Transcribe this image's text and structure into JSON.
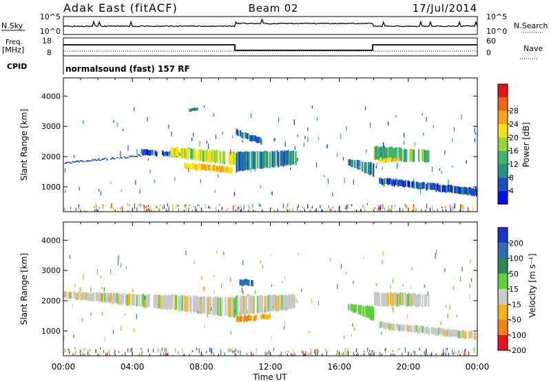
{
  "header": {
    "radar": "Adak East (fitACF)",
    "beam": "Beam 02",
    "date": "17/Jul/2014"
  },
  "noise_panel": {
    "left_label": "N.Sky",
    "right_label": "N.Search",
    "left_ticks": [
      "10^5",
      "10^0"
    ],
    "right_ticks": [
      "10^5",
      "10^0"
    ]
  },
  "freq_panel": {
    "left_label_1": "Freq.",
    "left_label_2": "[MHz]",
    "right_label": "Nave",
    "left_ticks": [
      "18",
      "8"
    ],
    "right_ticks": [
      "60",
      "0"
    ]
  },
  "cpid": {
    "label": "CPID",
    "text": "normalsound (fast) 157 RF"
  },
  "power_panel": {
    "ylabel": "Slant Range [km]",
    "yticks": [
      "1000",
      "2000",
      "3000",
      "4000"
    ],
    "cbar_label": "Power [dB]",
    "cbar_ticks": [
      "4",
      "8",
      "12",
      "16",
      "20",
      "24",
      "28"
    ],
    "cbar_colors": [
      "#0a10e6",
      "#1a4fc2",
      "#2e8f86",
      "#44b36a",
      "#9bd13c",
      "#f4e21b",
      "#f5a418",
      "#ef6413",
      "#e6140f"
    ]
  },
  "velocity_panel": {
    "ylabel": "Slant Range [km]",
    "yticks": [
      "1000",
      "2000",
      "3000",
      "4000"
    ],
    "cbar_label": "Velocity [m s⁻¹]",
    "cbar_ticks": [
      "200",
      "100",
      "50",
      "15",
      "-15",
      "-50",
      "-100",
      "-200"
    ],
    "cbar_colors": [
      "#1a32c8",
      "#2c6fb0",
      "#2e8a52",
      "#5ed13a",
      "#c8c8c8",
      "#f0b418",
      "#f08218",
      "#e6141e"
    ]
  },
  "x_axis": {
    "label": "Time UT",
    "ticks": [
      "00:00",
      "04:00",
      "08:00",
      "12:00",
      "16:00",
      "20:00",
      "00:00"
    ]
  },
  "chart_data": {
    "type": "heatmap",
    "title": "Adak East (fitACF)  Beam 02  17/Jul/2014",
    "x_range_hours": [
      0,
      24
    ],
    "y_range_km": [
      180,
      4600
    ],
    "panels": [
      {
        "name": "Power [dB]",
        "clim": [
          0,
          30
        ],
        "regions": [
          {
            "t0": 0.0,
            "t1": 4.5,
            "range_start": [
              2100,
              2100
            ],
            "range_end": [
              1800,
              2050
            ],
            "level": 4
          },
          {
            "t0": 4.5,
            "t1": 7.0,
            "range_start": [
              2050,
              2000
            ],
            "range_end": [
              2250,
              2100
            ],
            "level": 5
          },
          {
            "t0": 6.2,
            "t1": 10.0,
            "range_start": [
              2000,
              1700
            ],
            "range_end": [
              2300,
              2150
            ],
            "level": 16
          },
          {
            "t0": 7.0,
            "t1": 9.8,
            "range_start": [
              1600,
              1450
            ],
            "range_end": [
              1800,
              1650
            ],
            "level": 20
          },
          {
            "t0": 7.2,
            "t1": 7.8,
            "range_start": [
              3500,
              3500
            ],
            "range_end": [
              3600,
              3600
            ],
            "level": 8
          },
          {
            "t0": 10.0,
            "t1": 13.5,
            "range_start": [
              1500,
              1750
            ],
            "range_end": [
              2150,
              2200
            ],
            "level": 8
          },
          {
            "t0": 10.0,
            "t1": 11.5,
            "range_start": [
              2700,
              2400
            ],
            "range_end": [
              2900,
              2600
            ],
            "level": 6
          },
          {
            "t0": 16.5,
            "t1": 18.0,
            "range_start": [
              1700,
              1350
            ],
            "range_end": [
              1900,
              1800
            ],
            "level": 8
          },
          {
            "t0": 18.0,
            "t1": 21.2,
            "range_start": [
              1900,
              1800
            ],
            "range_end": [
              2350,
              2200
            ],
            "level": 12
          },
          {
            "t0": 18.3,
            "t1": 19.5,
            "range_start": [
              1800,
              1850
            ],
            "range_end": [
              1950,
              1950
            ],
            "level": 20
          },
          {
            "t0": 18.3,
            "t1": 24.0,
            "range_start": [
              1100,
              700
            ],
            "range_end": [
              1300,
              950
            ],
            "level": 5
          }
        ]
      },
      {
        "name": "Velocity [m s-1]",
        "clim": [
          -250,
          250
        ],
        "regions": [
          {
            "t0": 0.0,
            "t1": 10.0,
            "range_start": [
              2100,
              1450
            ],
            "range_end": [
              2300,
              2100
            ],
            "velocity": 0
          },
          {
            "t0": 10.0,
            "t1": 13.5,
            "range_start": [
              1500,
              1750
            ],
            "range_end": [
              2150,
              2200
            ],
            "velocity": 0
          },
          {
            "t0": 10.0,
            "t1": 12.0,
            "range_start": [
              1300,
              1400
            ],
            "range_end": [
              1500,
              1550
            ],
            "velocity": -40
          },
          {
            "t0": 10.2,
            "t1": 11.0,
            "range_start": [
              2500,
              2500
            ],
            "range_end": [
              2700,
              2700
            ],
            "velocity": 150
          },
          {
            "t0": 16.5,
            "t1": 18.0,
            "range_start": [
              1700,
              1350
            ],
            "range_end": [
              1900,
              1800
            ],
            "velocity": 30
          },
          {
            "t0": 18.0,
            "t1": 21.2,
            "range_start": [
              1850,
              1800
            ],
            "range_end": [
              2300,
              2200
            ],
            "velocity": 0
          },
          {
            "t0": 18.3,
            "t1": 24.0,
            "range_start": [
              1100,
              700
            ],
            "range_end": [
              1300,
              950
            ],
            "velocity": 0
          }
        ]
      }
    ]
  }
}
